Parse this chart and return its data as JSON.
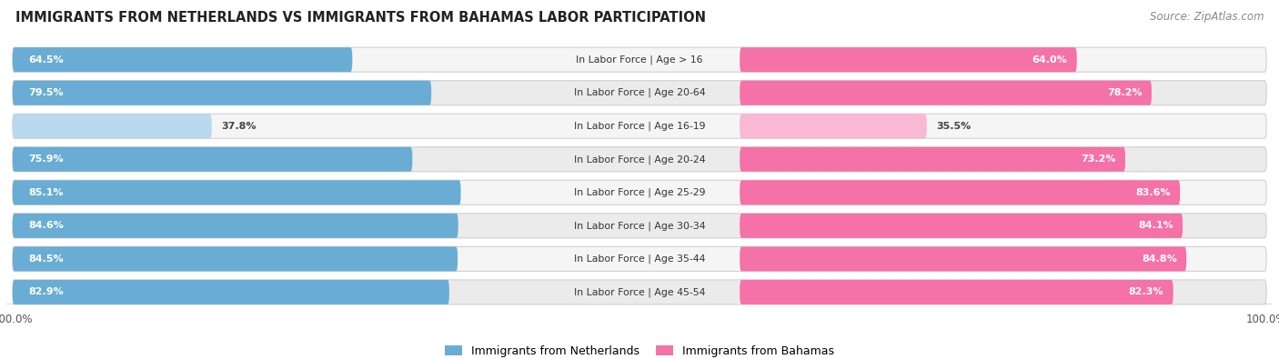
{
  "title": "IMMIGRANTS FROM NETHERLANDS VS IMMIGRANTS FROM BAHAMAS LABOR PARTICIPATION",
  "source": "Source: ZipAtlas.com",
  "categories": [
    "In Labor Force | Age > 16",
    "In Labor Force | Age 20-64",
    "In Labor Force | Age 16-19",
    "In Labor Force | Age 20-24",
    "In Labor Force | Age 25-29",
    "In Labor Force | Age 30-34",
    "In Labor Force | Age 35-44",
    "In Labor Force | Age 45-54"
  ],
  "netherlands_values": [
    64.5,
    79.5,
    37.8,
    75.9,
    85.1,
    84.6,
    84.5,
    82.9
  ],
  "bahamas_values": [
    64.0,
    78.2,
    35.5,
    73.2,
    83.6,
    84.1,
    84.8,
    82.3
  ],
  "netherlands_color": "#6aadd4",
  "netherlands_color_light": "#b8d9ee",
  "bahamas_color": "#f472a8",
  "bahamas_color_light": "#f9b8d4",
  "bg_color": "#ffffff",
  "row_bg_even": "#f2f2f2",
  "row_bg_odd": "#e8e8e8",
  "max_value": 100.0,
  "legend_netherlands": "Immigrants from Netherlands",
  "legend_bahamas": "Immigrants from Bahamas",
  "label_threshold": 50.0
}
